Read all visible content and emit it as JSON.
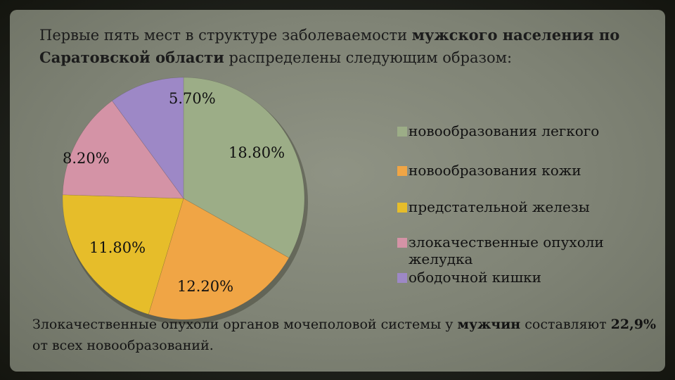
{
  "slide": {
    "title_part1": "Первые пять мест в структуре заболеваемости ",
    "title_bold1": "мужского населения по Саратовской области",
    "title_part2": " распределены следующим образом:",
    "footer_part1": "Злокачественные опухоли органов мочеполовой системы у ",
    "footer_bold1": "мужчин",
    "footer_part2": " составляют ",
    "footer_bold2": "22,9%",
    "footer_part3": " от всех новообразований."
  },
  "chart_data": {
    "type": "pie",
    "categories": [
      "новообразования легкого",
      "новообразования кожи",
      "предстательной железы",
      "злокачественные опухоли желудка",
      "ободочной кишки"
    ],
    "values": [
      18.8,
      12.2,
      11.8,
      8.2,
      5.7
    ],
    "value_labels": [
      "18.80%",
      "12.20%",
      "11.80%",
      "8.20%",
      "5.70%"
    ],
    "colors": [
      "#9cad87",
      "#f0a545",
      "#e6bd2a",
      "#d493a6",
      "#9d88c6"
    ],
    "legend_position": "right"
  }
}
